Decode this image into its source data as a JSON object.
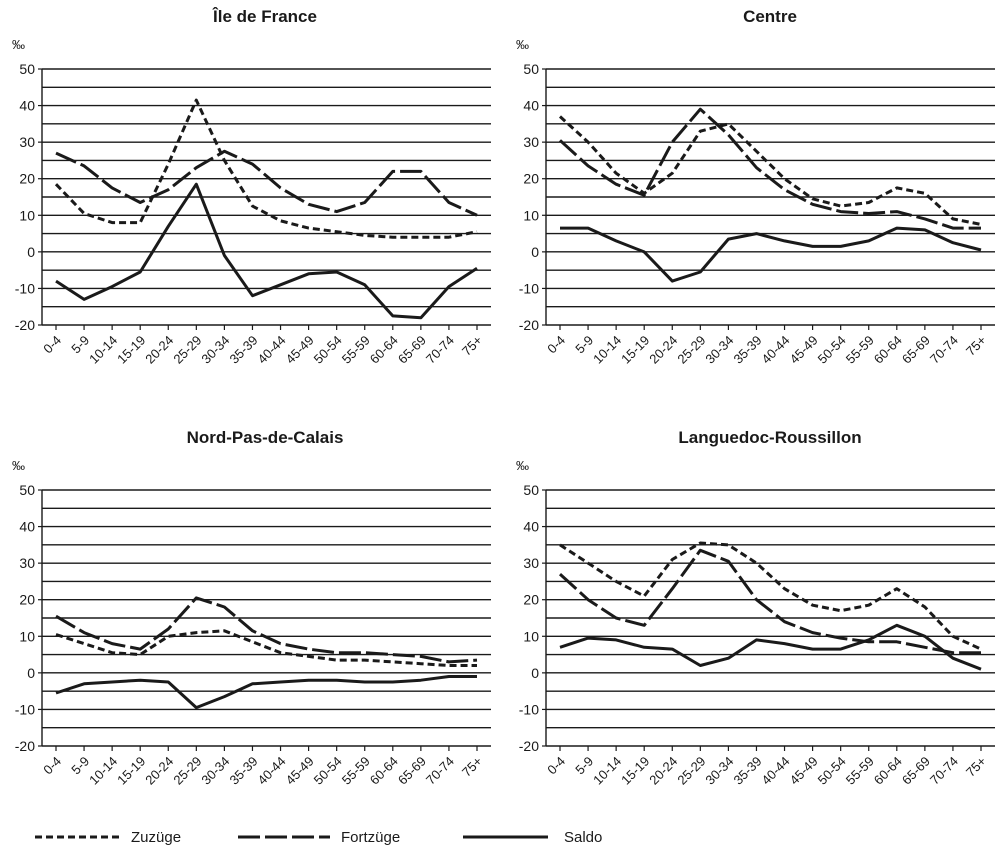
{
  "colors": {
    "line": "#1a1a1a",
    "grid": "#1a1a1a",
    "background": "#ffffff"
  },
  "legend": [
    {
      "label": "Zuzüge",
      "style": "dashed"
    },
    {
      "label": "Fortzüge",
      "style": "dash-long"
    },
    {
      "label": "Saldo",
      "style": "solid"
    }
  ],
  "chart_data": [
    {
      "type": "line",
      "title": "Île de France",
      "ylabel": "‰",
      "ylim": [
        -20,
        50
      ],
      "yticks": [
        "50",
        "40",
        "30",
        "20",
        "10",
        "0",
        "-10",
        "-20"
      ],
      "grid": true,
      "categories": [
        "0-4",
        "5-9",
        "10-14",
        "15-19",
        "20-24",
        "25-29",
        "30-34",
        "35-39",
        "40-44",
        "45-49",
        "50-54",
        "55-59",
        "60-64",
        "65-69",
        "70-74",
        "75+"
      ],
      "series": [
        {
          "name": "Zuzüge",
          "values": [
            18.5,
            10.5,
            8,
            8,
            24,
            41.5,
            25,
            12.5,
            8.5,
            6.5,
            5.5,
            4.5,
            4,
            4,
            4,
            5.5
          ]
        },
        {
          "name": "Fortzüge",
          "values": [
            27,
            23.5,
            17.5,
            13.5,
            17,
            23,
            27.5,
            24,
            17.5,
            13,
            11,
            13.5,
            22,
            22,
            13.5,
            10
          ]
        },
        {
          "name": "Saldo",
          "values": [
            -8,
            -13,
            -9.5,
            -5.5,
            7,
            18.5,
            -1,
            -12,
            -9,
            -6,
            -5.5,
            -9,
            -17.5,
            -18,
            -9.5,
            -4.5
          ]
        }
      ]
    },
    {
      "type": "line",
      "title": "Centre",
      "ylabel": "‰",
      "ylim": [
        -20,
        50
      ],
      "yticks": [
        "50",
        "40",
        "30",
        "20",
        "10",
        "0",
        "-10",
        "-20"
      ],
      "grid": true,
      "categories": [
        "0-4",
        "5-9",
        "10-14",
        "15-19",
        "20-24",
        "25-29",
        "30-34",
        "35-39",
        "40-44",
        "45-49",
        "50-54",
        "55-59",
        "60-64",
        "65-69",
        "70-74",
        "75+"
      ],
      "series": [
        {
          "name": "Zuzüge",
          "values": [
            37,
            30,
            21.5,
            16,
            21.5,
            33,
            35,
            27.5,
            20,
            14.5,
            12.5,
            13.5,
            17.5,
            16,
            9,
            7.5
          ]
        },
        {
          "name": "Fortzüge",
          "values": [
            30.5,
            23.5,
            18.5,
            15.5,
            30,
            39,
            32,
            23,
            17,
            13,
            11,
            10.5,
            11,
            9,
            6.5,
            6.5
          ]
        },
        {
          "name": "Saldo",
          "values": [
            6.5,
            6.5,
            3,
            0,
            -8,
            -5.5,
            3.5,
            5,
            3,
            1.5,
            1.5,
            3,
            6.5,
            6,
            2.5,
            0.5
          ]
        }
      ]
    },
    {
      "type": "line",
      "title": "Nord-Pas-de-Calais",
      "ylabel": "‰",
      "ylim": [
        -20,
        50
      ],
      "yticks": [
        "50",
        "40",
        "30",
        "20",
        "10",
        "0",
        "-10",
        "-20"
      ],
      "grid": true,
      "categories": [
        "0-4",
        "5-9",
        "10-14",
        "15-19",
        "20-24",
        "25-29",
        "30-34",
        "35-39",
        "40-44",
        "45-49",
        "50-54",
        "55-59",
        "60-64",
        "65-69",
        "70-74",
        "75+"
      ],
      "series": [
        {
          "name": "Zuzüge",
          "values": [
            10.5,
            8,
            5.5,
            5,
            10,
            11,
            11.5,
            8.5,
            5.5,
            4.5,
            3.5,
            3.5,
            3,
            2.5,
            2,
            2
          ]
        },
        {
          "name": "Fortzüge",
          "values": [
            15.5,
            11,
            8,
            6.5,
            12,
            20.5,
            18,
            11.5,
            8,
            6.5,
            5.5,
            5.5,
            5,
            4.5,
            3,
            3.5
          ]
        },
        {
          "name": "Saldo",
          "values": [
            -5.5,
            -3,
            -2.5,
            -2,
            -2.5,
            -9.5,
            -6.5,
            -3,
            -2.5,
            -2,
            -2,
            -2.5,
            -2.5,
            -2,
            -1,
            -1
          ]
        }
      ]
    },
    {
      "type": "line",
      "title": "Languedoc-Roussillon",
      "ylabel": "‰",
      "ylim": [
        -20,
        50
      ],
      "yticks": [
        "50",
        "40",
        "30",
        "20",
        "10",
        "0",
        "-10",
        "-20"
      ],
      "grid": true,
      "categories": [
        "0-4",
        "5-9",
        "10-14",
        "15-19",
        "20-24",
        "25-29",
        "30-34",
        "35-39",
        "40-44",
        "45-49",
        "50-54",
        "55-59",
        "60-64",
        "65-69",
        "70-74",
        "75+"
      ],
      "series": [
        {
          "name": "Zuzüge",
          "values": [
            35,
            30,
            25,
            21,
            31,
            35.5,
            35,
            30,
            23,
            18.5,
            17,
            18.5,
            23,
            18,
            10,
            6.5
          ]
        },
        {
          "name": "Fortzüge",
          "values": [
            27,
            20,
            15,
            13,
            23,
            33.5,
            30.5,
            20,
            14,
            11,
            9.5,
            8.5,
            8.5,
            7,
            5.5,
            5.5
          ]
        },
        {
          "name": "Saldo",
          "values": [
            7,
            9.5,
            9,
            7,
            6.5,
            2,
            4,
            9,
            8,
            6.5,
            6.5,
            9,
            13,
            10,
            4,
            1
          ]
        }
      ]
    }
  ]
}
